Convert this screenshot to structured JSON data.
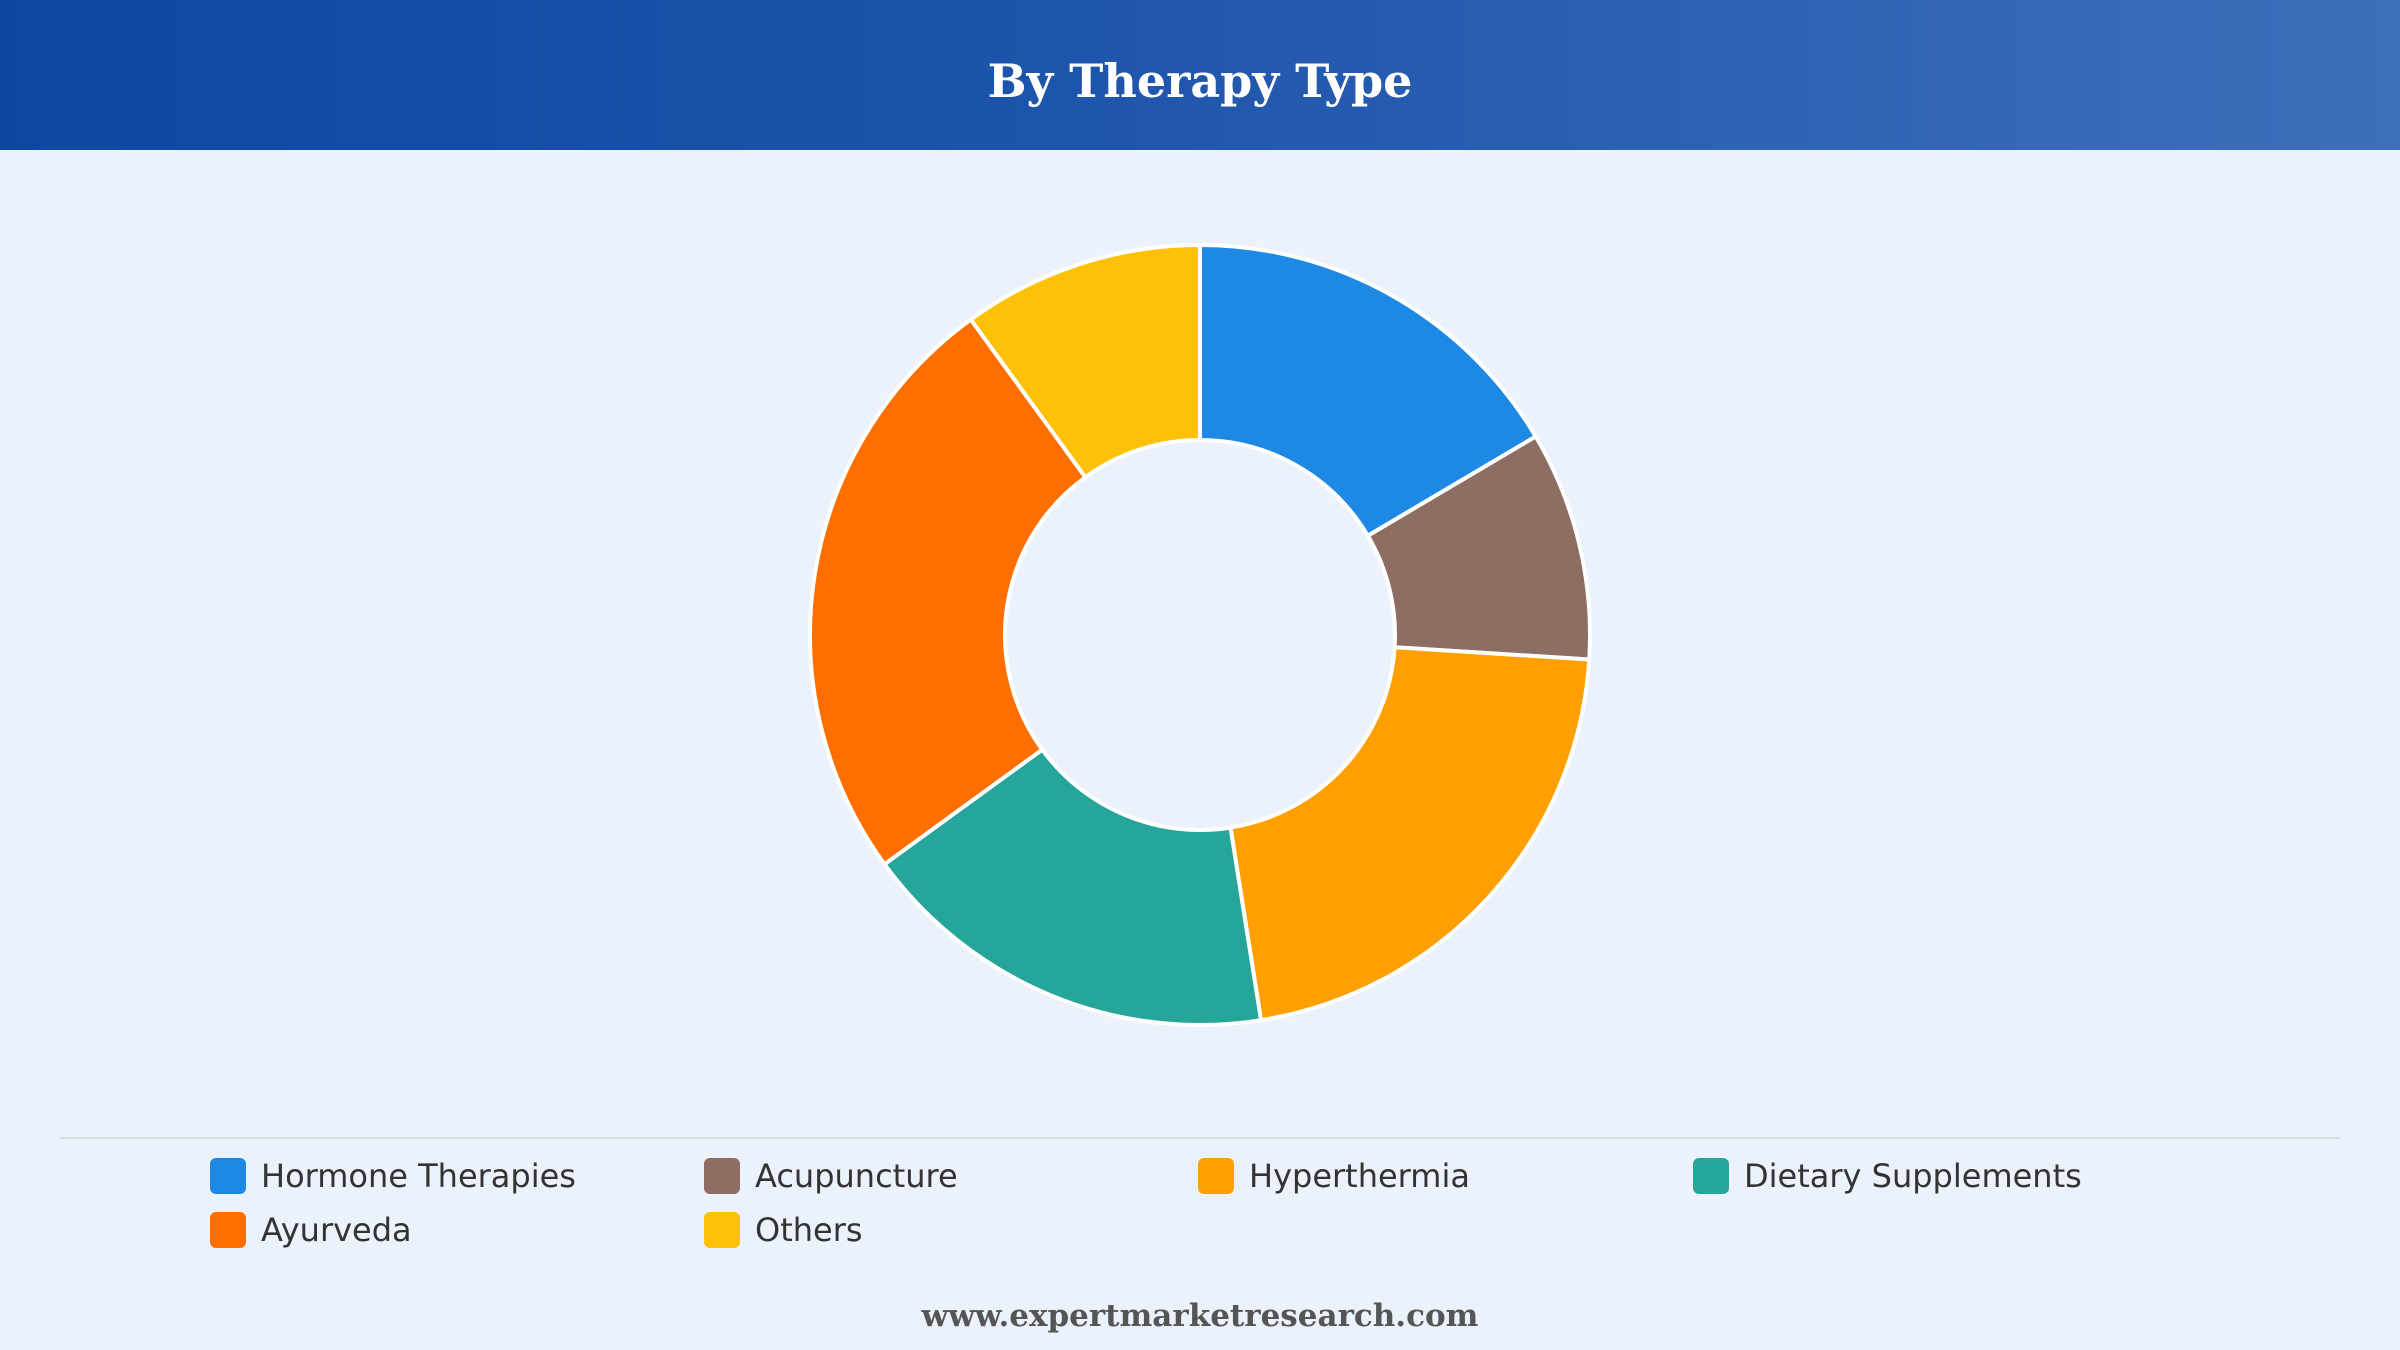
{
  "header": {
    "title": "By Therapy Type"
  },
  "chart_data": {
    "type": "pie",
    "variant": "donut",
    "title": "By Therapy Type",
    "categories": [
      "Hormone Therapies",
      "Acupuncture",
      "Hyperthermia",
      "Dietary Supplements",
      "Ayurveda",
      "Others"
    ],
    "values": [
      16.5,
      9.5,
      21.5,
      17.5,
      25,
      10
    ],
    "unit": "%",
    "colors": [
      "#1e88e5",
      "#8d6e63",
      "#ffa000",
      "#26a69a",
      "#ff6f00",
      "#ffc107"
    ],
    "legend": {
      "position": "bottom"
    }
  },
  "footer": {
    "source": "www.expertmarketresearch.com"
  }
}
